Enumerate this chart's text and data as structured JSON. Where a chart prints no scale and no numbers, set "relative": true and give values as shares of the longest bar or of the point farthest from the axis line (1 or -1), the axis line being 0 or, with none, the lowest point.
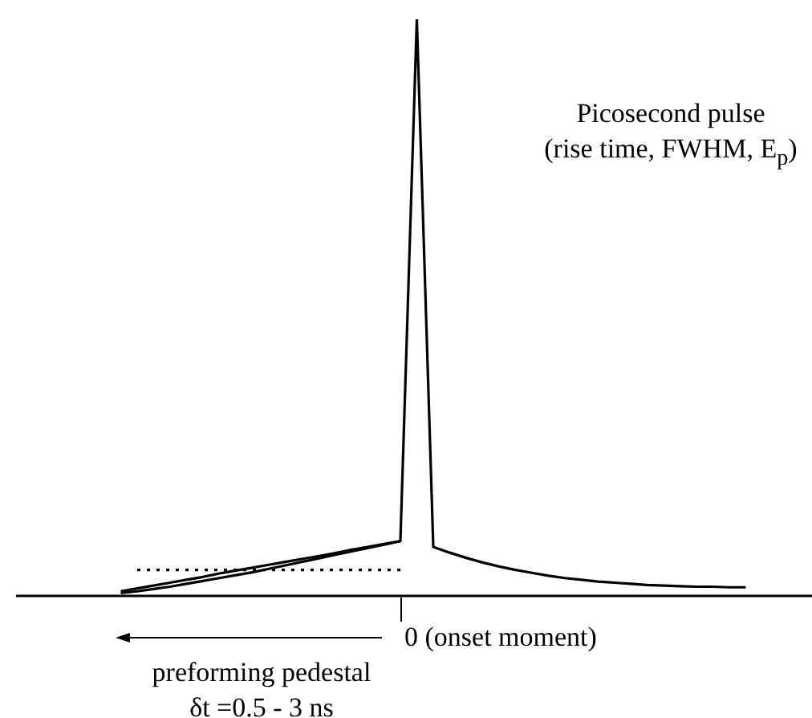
{
  "chart_data": {
    "type": "line",
    "relative": true,
    "categories": [
      null,
      null,
      null,
      null,
      null,
      null,
      null,
      null,
      null,
      null,
      null,
      null,
      null,
      null,
      null,
      null,
      null,
      null,
      null,
      null,
      null,
      null,
      null,
      null,
      null,
      null,
      null,
      null,
      null,
      null,
      null,
      null,
      null,
      null,
      null,
      null,
      null,
      null,
      null,
      null,
      null
    ],
    "series": [
      {
        "color": "#000000",
        "line_style": "solid",
        "values": [
          null,
          0.005,
          0.008,
          0.012,
          0.016,
          0.021,
          0.026,
          0.031,
          0.036,
          0.041,
          0.047,
          0.053,
          0.059,
          0.065,
          0.071,
          0.077,
          0.083,
          0.089,
          0.095,
          1,
          0.085,
          0.075,
          0.066,
          0.058,
          0.051,
          0.045,
          0.04,
          0.035,
          0.031,
          0.028,
          0.025,
          0.023,
          0.021,
          0.019,
          0.018,
          0.017,
          0.016,
          0.016,
          0.015,
          0.015,
          null
        ]
      },
      {
        "color": "#000000",
        "line_style": "solid",
        "values": [
          null,
          0.008,
          0.013,
          0.018,
          0.023,
          0.028,
          0.033,
          0.039,
          0.044,
          0.049,
          0.054,
          0.059,
          0.064,
          0.069,
          0.074,
          0.08,
          0.085,
          0.09,
          0.095,
          null,
          null,
          null,
          null,
          null,
          null,
          null,
          null,
          null,
          null,
          null,
          null,
          null,
          null,
          null,
          null,
          null,
          null,
          null,
          null,
          null,
          null
        ]
      },
      {
        "color": "#000000",
        "line_style": "dotted",
        "values": [
          null,
          null,
          0.045,
          0.045,
          0.045,
          0.045,
          0.045,
          0.045,
          0.045,
          0.045,
          0.045,
          0.045,
          0.045,
          0.045,
          0.045,
          0.045,
          0.045,
          0.045,
          0.045,
          null,
          null,
          null,
          null,
          null,
          null,
          null,
          null,
          null,
          null,
          null,
          null,
          null,
          null,
          null,
          null,
          null,
          null,
          null,
          null,
          null,
          null
        ]
      }
    ],
    "annotations": [
      "Picosecond pulse\n(rise time, FWHM, E$_{p}$)",
      "preforming pedestal",
      "δt =0.5 - 3 ns",
      "0 (onset moment)"
    ]
  }
}
